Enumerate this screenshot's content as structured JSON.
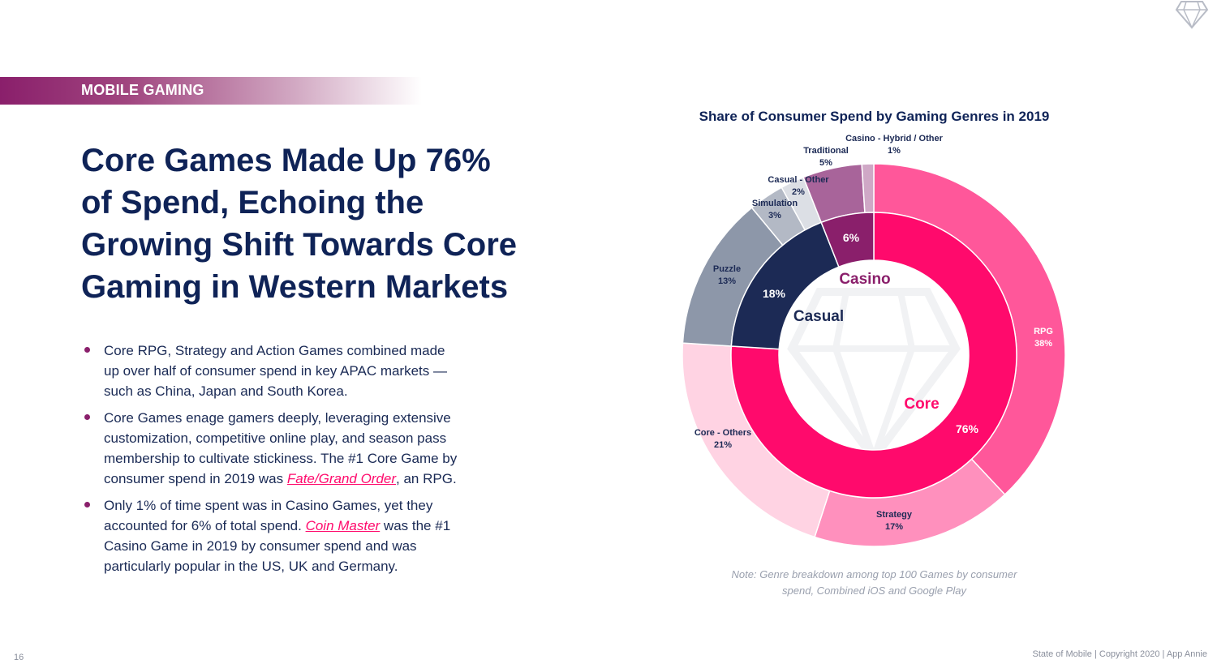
{
  "header": {
    "section_label": "MOBILE GAMING",
    "logo_icon": "diamond-icon"
  },
  "headline": {
    "lines": [
      "Core Games Made Up 76%",
      "of Spend, Echoing the",
      "Growing Shift Towards Core",
      "Gaming in Western Markets"
    ]
  },
  "bullets": [
    {
      "lines": [
        "Core RPG, Strategy and Action Games combined made",
        "up over half of consumer spend in key APAC markets —",
        "such as China, Japan and South Korea."
      ]
    },
    {
      "lines": [
        "Core Games enage gamers deeply, leveraging extensive",
        "customization, competitive online play, and season pass",
        "membership to cultivate stickiness. The #1 Core Game by"
      ],
      "last_line_pre": "consumer spend in 2019 was ",
      "link": "Fate/Grand Order",
      "last_line_post": ", an RPG."
    },
    {
      "line1": "Only 1% of time spent was in Casino Games, yet they",
      "line2_pre": "accounted for 6% of total spend. ",
      "link": "Coin Master",
      "line2_post": " was the #1",
      "line3": "Casino Game in 2019 by consumer spend and was",
      "line4": "particularly popular in the US, UK and Germany."
    }
  ],
  "chart_data": {
    "type": "pie",
    "subtype": "nested-donut",
    "title": "Share of Consumer Spend by Gaming Genres in 2019",
    "inner_ring": [
      {
        "name": "Core",
        "value_label": "76%",
        "value": 76,
        "color": "#ff0a6c"
      },
      {
        "name": "Casual",
        "value_label": "18%",
        "value": 18,
        "color": "#1c2a55"
      },
      {
        "name": "Casino",
        "value_label": "6%",
        "value": 6,
        "color": "#8a1f6b"
      }
    ],
    "outer_ring": [
      {
        "name": "RPG",
        "value_label": "38%",
        "value": 38,
        "color": "#ff579a"
      },
      {
        "name": "Strategy",
        "value_label": "17%",
        "value": 17,
        "color": "#ff90bd"
      },
      {
        "name": "Core - Others",
        "value_label": "21%",
        "value": 21,
        "color": "#ffd3e3"
      },
      {
        "name": "Puzzle",
        "value_label": "13%",
        "value": 13,
        "color": "#8d97a9"
      },
      {
        "name": "Simulation",
        "value_label": "3%",
        "value": 3,
        "color": "#b3b9c5"
      },
      {
        "name": "Casual - Other",
        "value_label": "2%",
        "value": 2,
        "color": "#dcdfe5"
      },
      {
        "name": "Traditional",
        "value_label": "5%",
        "value": 5,
        "color": "#a8649a"
      },
      {
        "name": "Casino - Hybrid / Other",
        "value_label": "1%",
        "value": 1,
        "color": "#cfa8c6"
      }
    ]
  },
  "note": {
    "line1": "Note: Genre breakdown among top 100 Games by consumer",
    "line2": "spend, Combined iOS and Google Play"
  },
  "footer": {
    "page_number": "16",
    "credit": "State of Mobile  |  Copyright 2020  |  App Annie"
  }
}
